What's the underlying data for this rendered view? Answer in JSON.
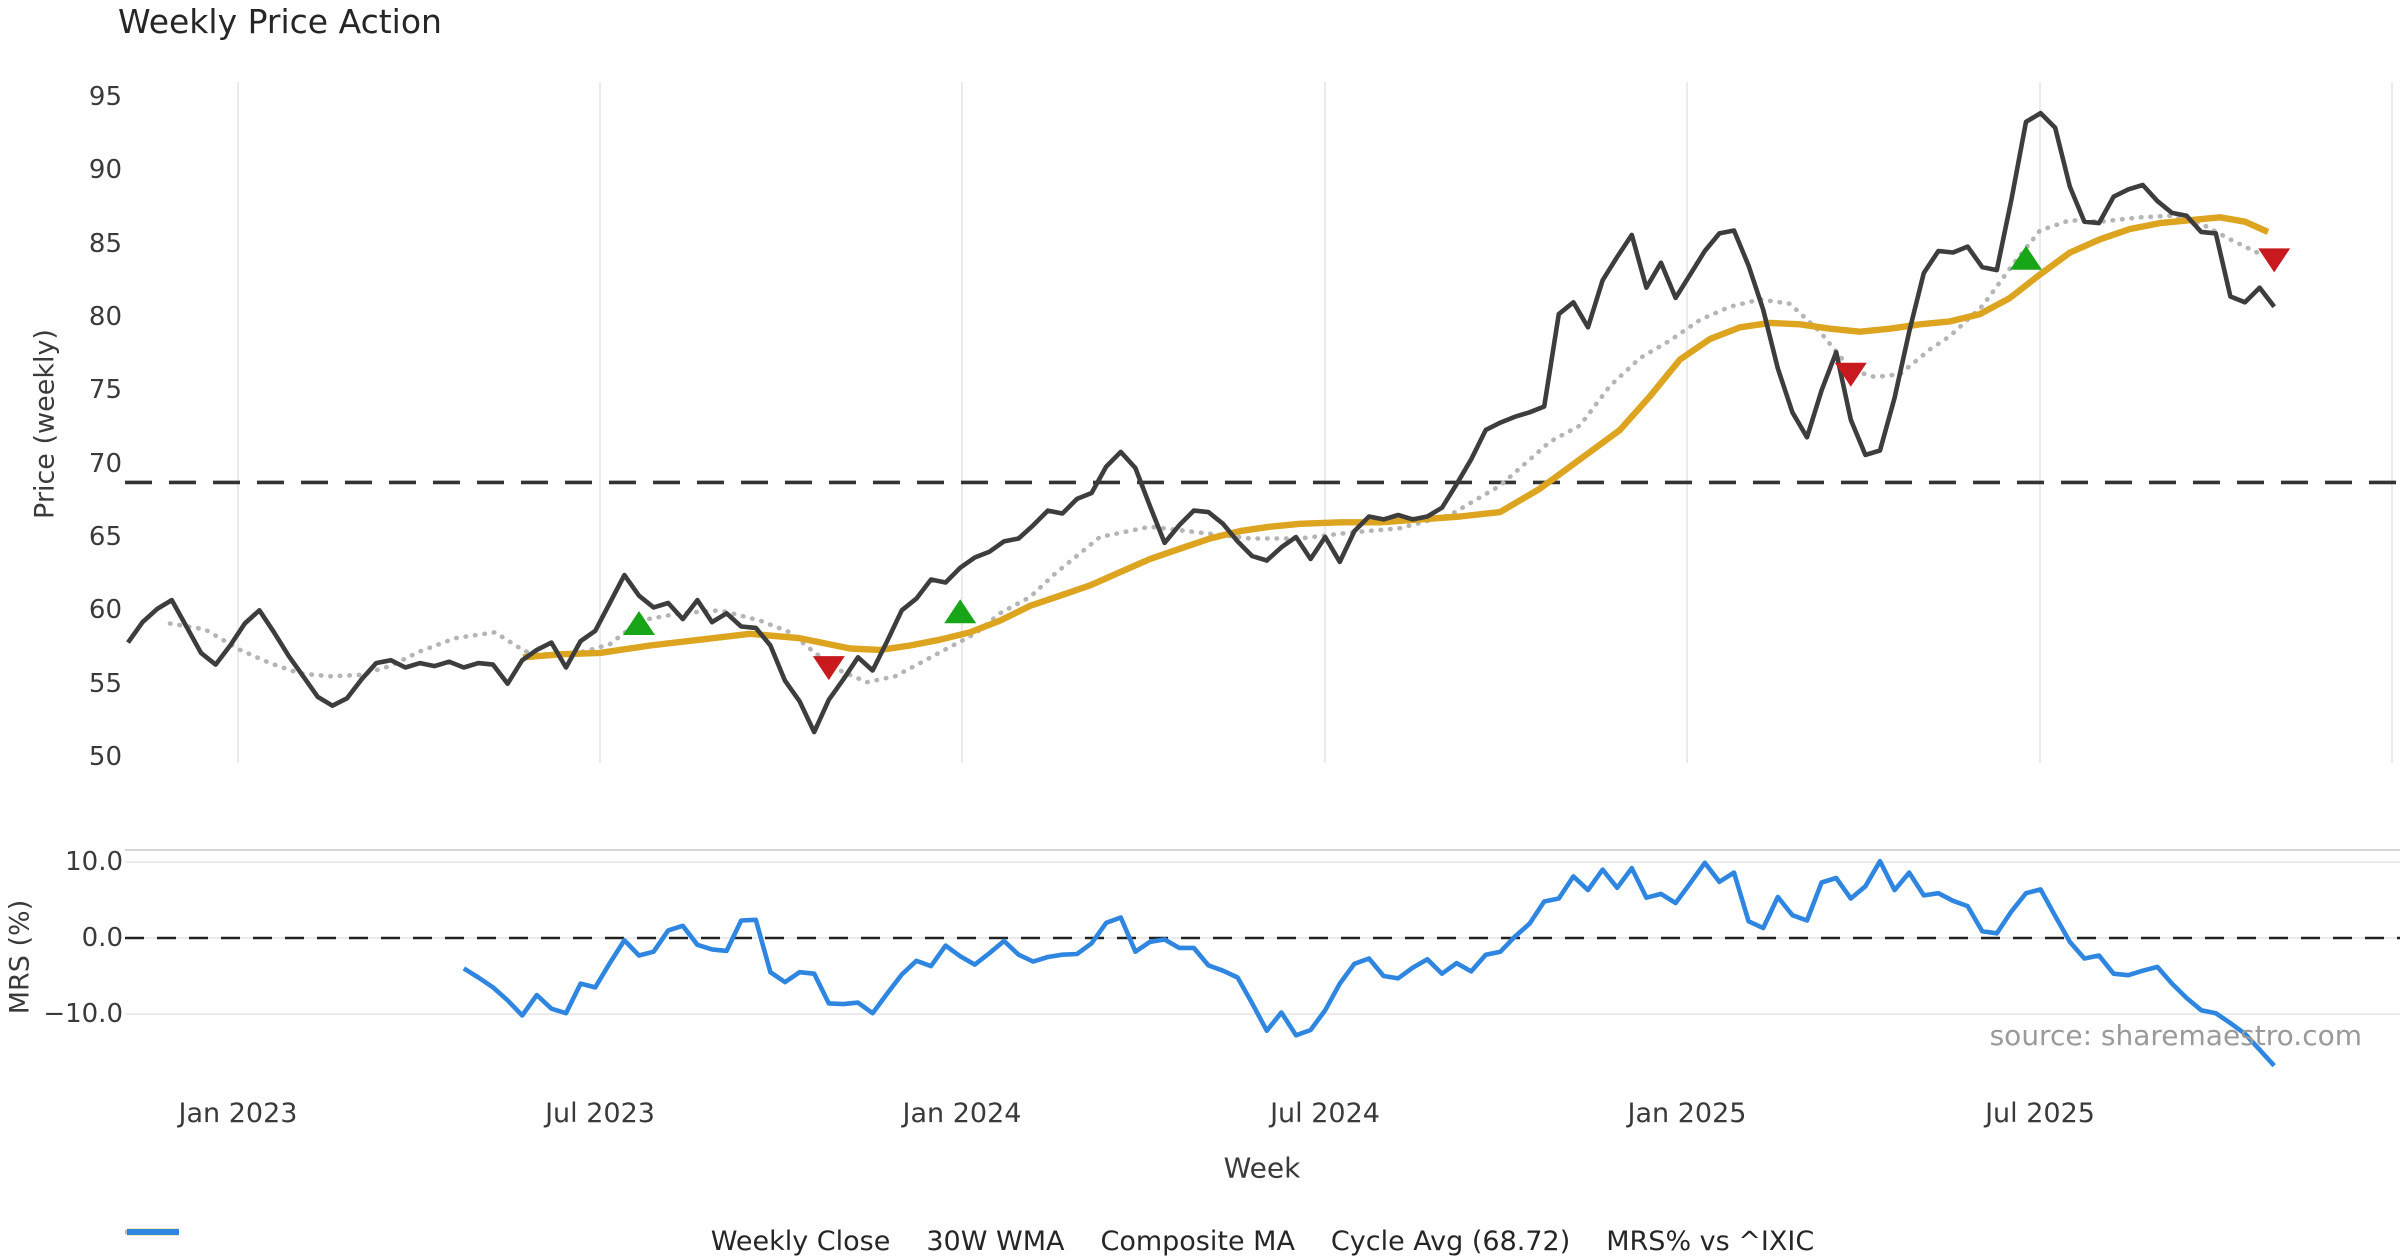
{
  "title": "Weekly Price Action",
  "source_note": "source: sharemaestro.com",
  "axes": {
    "xlabel": "Week",
    "price_ylabel": "Price (weekly)",
    "mrs_ylabel": "MRS (%)",
    "price_yticks": [
      95,
      90,
      85,
      80,
      75,
      70,
      65,
      60,
      55,
      50
    ],
    "mrs_yticks": [
      {
        "label": "10.0",
        "value": 10
      },
      {
        "label": "0.0",
        "value": 0
      },
      {
        "label": "−10.0",
        "value": -10
      }
    ],
    "xticks": [
      "Jan 2023",
      "Jul 2023",
      "Jan 2024",
      "Jul 2024",
      "Jan 2025",
      "Jul 2025"
    ]
  },
  "colors": {
    "close": "#3d3d3d",
    "wma": "#dca41f",
    "composite": "#b5b5b5",
    "cycle": "#333333",
    "mrs": "#2e86e0",
    "marker_up": "#18a518",
    "marker_down": "#c8191e",
    "grid": "#ebebeb",
    "spine": "#d6d6d6"
  },
  "legend": {
    "items": [
      {
        "label": "Weekly Close",
        "style": "solid",
        "color": "#3d3d3d"
      },
      {
        "label": "30W WMA",
        "style": "thick",
        "color": "#dca41f"
      },
      {
        "label": "Composite MA",
        "style": "dotted",
        "color": "#b5b5b5"
      },
      {
        "label": "Cycle Avg (68.72)",
        "style": "dashed",
        "color": "#3d3d3d"
      },
      {
        "label": "MRS% vs ^IXIC",
        "style": "thick",
        "color": "#2e86e0"
      }
    ]
  },
  "chart_data": [
    {
      "type": "line",
      "panel": "price",
      "title": "Weekly Price Action",
      "ylabel": "Price (weekly)",
      "ylim": [
        49.6,
        96.0
      ],
      "grid": "vertical-only",
      "x_tick_labels": [
        "Jan 2023",
        "Jul 2023",
        "Jan 2024",
        "Jul 2024",
        "Jan 2025",
        "Jul 2025"
      ],
      "series": [
        {
          "name": "Weekly Close",
          "style": "solid",
          "color": "#3d3d3d",
          "start_week": 0,
          "values": [
            57.8,
            59.2,
            60.1,
            60.7,
            58.9,
            57.1,
            56.3,
            57.6,
            59.1,
            60.0,
            58.5,
            56.9,
            55.5,
            54.1,
            53.5,
            54.0,
            55.3,
            56.4,
            56.6,
            56.1,
            56.4,
            56.2,
            56.5,
            56.1,
            56.4,
            56.3,
            55.0,
            56.6,
            57.3,
            57.8,
            56.1,
            57.9,
            58.6,
            60.5,
            62.4,
            61.0,
            60.2,
            60.5,
            59.4,
            60.7,
            59.2,
            59.8,
            58.9,
            58.8,
            57.6,
            55.2,
            53.8,
            51.7,
            53.9,
            55.3,
            56.8,
            55.9,
            57.9,
            60.0,
            60.8,
            62.1,
            61.9,
            62.9,
            63.6,
            64.0,
            64.7,
            64.9,
            65.8,
            66.8,
            66.6,
            67.6,
            68.0,
            69.8,
            70.8,
            69.7,
            67.1,
            64.6,
            65.8,
            66.8,
            66.7,
            65.9,
            64.7,
            63.7,
            63.4,
            64.3,
            65.0,
            63.5,
            65.0,
            63.3,
            65.4,
            66.4,
            66.2,
            66.5,
            66.2,
            66.4,
            67.0,
            68.6,
            70.3,
            72.3,
            72.8,
            73.2,
            73.5,
            73.9,
            80.2,
            81.0,
            79.3,
            82.5,
            84.1,
            85.6,
            82.0,
            83.7,
            81.3,
            82.9,
            84.5,
            85.7,
            85.9,
            83.5,
            80.5,
            76.5,
            73.5,
            71.8,
            75.0,
            77.6,
            73.0,
            70.6,
            70.9,
            74.5,
            79.0,
            83.0,
            84.5,
            84.4,
            84.8,
            83.4,
            83.2,
            88.0,
            93.3,
            93.9,
            92.9,
            88.9,
            86.5,
            86.4,
            88.2,
            88.7,
            89.0,
            87.9,
            87.1,
            86.9,
            85.8,
            85.7,
            81.4,
            81.0,
            82.0,
            80.7
          ]
        },
        {
          "name": "30W WMA",
          "style": "thick",
          "color": "#dca41f",
          "points": [
            [
              523,
              56.8
            ],
            [
              560,
              57.0
            ],
            [
              600,
              57.1
            ],
            [
              650,
              57.6
            ],
            [
              700,
              58.0
            ],
            [
              750,
              58.4
            ],
            [
              800,
              58.1
            ],
            [
              850,
              57.4
            ],
            [
              880,
              57.3
            ],
            [
              910,
              57.6
            ],
            [
              940,
              58.0
            ],
            [
              970,
              58.5
            ],
            [
              1000,
              59.3
            ],
            [
              1030,
              60.3
            ],
            [
              1060,
              61.0
            ],
            [
              1090,
              61.7
            ],
            [
              1120,
              62.6
            ],
            [
              1150,
              63.5
            ],
            [
              1180,
              64.2
            ],
            [
              1210,
              64.9
            ],
            [
              1240,
              65.4
            ],
            [
              1270,
              65.7
            ],
            [
              1300,
              65.9
            ],
            [
              1340,
              66.0
            ],
            [
              1380,
              66.0
            ],
            [
              1420,
              66.2
            ],
            [
              1460,
              66.4
            ],
            [
              1500,
              66.7
            ],
            [
              1540,
              68.3
            ],
            [
              1580,
              70.3
            ],
            [
              1620,
              72.3
            ],
            [
              1650,
              74.6
            ],
            [
              1680,
              77.1
            ],
            [
              1710,
              78.5
            ],
            [
              1740,
              79.3
            ],
            [
              1770,
              79.6
            ],
            [
              1800,
              79.5
            ],
            [
              1830,
              79.2
            ],
            [
              1860,
              79.0
            ],
            [
              1890,
              79.2
            ],
            [
              1920,
              79.5
            ],
            [
              1950,
              79.7
            ],
            [
              1980,
              80.2
            ],
            [
              2010,
              81.3
            ],
            [
              2040,
              82.9
            ],
            [
              2070,
              84.4
            ],
            [
              2100,
              85.3
            ],
            [
              2130,
              86.0
            ],
            [
              2160,
              86.4
            ],
            [
              2190,
              86.6
            ],
            [
              2220,
              86.8
            ],
            [
              2245,
              86.5
            ],
            [
              2268,
              85.8
            ]
          ]
        },
        {
          "name": "Composite MA",
          "style": "dotted",
          "color": "#b5b5b5",
          "points": [
            [
              170,
              59.1
            ],
            [
              205,
              58.7
            ],
            [
              240,
              57.3
            ],
            [
              270,
              56.4
            ],
            [
              300,
              55.7
            ],
            [
              330,
              55.5
            ],
            [
              360,
              55.6
            ],
            [
              390,
              56.2
            ],
            [
              420,
              57.2
            ],
            [
              455,
              58.1
            ],
            [
              495,
              58.5
            ],
            [
              525,
              57.2
            ],
            [
              555,
              56.9
            ],
            [
              585,
              57.2
            ],
            [
              610,
              57.7
            ],
            [
              640,
              59.3
            ],
            [
              680,
              59.8
            ],
            [
              720,
              60.0
            ],
            [
              760,
              59.3
            ],
            [
              790,
              58.5
            ],
            [
              815,
              57.1
            ],
            [
              840,
              55.9
            ],
            [
              867,
              55.1
            ],
            [
              895,
              55.5
            ],
            [
              920,
              56.4
            ],
            [
              950,
              57.5
            ],
            [
              975,
              58.4
            ],
            [
              1000,
              59.8
            ],
            [
              1030,
              60.9
            ],
            [
              1055,
              62.5
            ],
            [
              1100,
              65.0
            ],
            [
              1150,
              65.7
            ],
            [
              1200,
              65.3
            ],
            [
              1250,
              64.9
            ],
            [
              1300,
              64.9
            ],
            [
              1350,
              65.3
            ],
            [
              1400,
              65.6
            ],
            [
              1450,
              66.5
            ],
            [
              1500,
              68.5
            ],
            [
              1550,
              71.5
            ],
            [
              1580,
              72.6
            ],
            [
              1610,
              75.3
            ],
            [
              1640,
              77.2
            ],
            [
              1670,
              78.4
            ],
            [
              1700,
              79.8
            ],
            [
              1730,
              80.7
            ],
            [
              1760,
              81.2
            ],
            [
              1790,
              80.9
            ],
            [
              1820,
              79.0
            ],
            [
              1851,
              76.4
            ],
            [
              1875,
              75.9
            ],
            [
              1900,
              76.1
            ],
            [
              1930,
              77.8
            ],
            [
              1950,
              78.7
            ],
            [
              1983,
              80.8
            ],
            [
              2012,
              83.5
            ],
            [
              2040,
              85.9
            ],
            [
              2070,
              86.6
            ],
            [
              2100,
              86.5
            ],
            [
              2140,
              86.8
            ],
            [
              2170,
              86.9
            ],
            [
              2200,
              86.4
            ],
            [
              2230,
              85.3
            ],
            [
              2257,
              84.4
            ]
          ]
        },
        {
          "name": "Cycle Avg",
          "style": "dashed",
          "color": "#333333",
          "type": "hline",
          "value": 68.72
        }
      ],
      "markers": {
        "up": [
          {
            "week": 35,
            "value": 59.0
          },
          {
            "week": 57,
            "value": 59.8
          },
          {
            "week": 130,
            "value": 83.9
          }
        ],
        "down": [
          {
            "week": 48,
            "value": 56.2
          },
          {
            "week": 118,
            "value": 76.2
          },
          {
            "week": 147,
            "value": 84.0
          }
        ]
      }
    },
    {
      "type": "line",
      "panel": "mrs",
      "ylabel": "MRS (%)",
      "ylim": [
        -18.1,
        11.5
      ],
      "series": [
        {
          "name": "MRS% vs ^IXIC",
          "style": "thick",
          "color": "#2e86e0",
          "start_week": 23,
          "values": [
            -4.0,
            -5.2,
            -6.5,
            -8.2,
            -10.2,
            -7.5,
            -9.3,
            -9.9,
            -6.0,
            -6.5,
            -3.3,
            -0.3,
            -2.3,
            -1.8,
            1.0,
            1.6,
            -0.9,
            -1.5,
            -1.7,
            2.3,
            2.4,
            -4.5,
            -5.8,
            -4.5,
            -4.7,
            -8.6,
            -8.7,
            -8.5,
            -9.9,
            -7.3,
            -4.8,
            -3.0,
            -3.7,
            -1.0,
            -2.4,
            -3.5,
            -2.0,
            -0.4,
            -2.2,
            -3.1,
            -2.5,
            -2.2,
            -2.1,
            -0.7,
            2.0,
            2.7,
            -1.8,
            -0.5,
            -0.2,
            -1.3,
            -1.3,
            -3.6,
            -4.3,
            -5.2,
            -8.6,
            -12.2,
            -9.8,
            -12.8,
            -12.1,
            -9.5,
            -6.0,
            -3.4,
            -2.7,
            -5.0,
            -5.3,
            -3.9,
            -2.8,
            -4.7,
            -3.3,
            -4.4,
            -2.2,
            -1.8,
            0.2,
            1.9,
            4.8,
            5.2,
            8.1,
            6.3,
            9.0,
            6.6,
            9.2,
            5.3,
            5.8,
            4.6,
            7.2,
            9.9,
            7.4,
            8.6,
            2.2,
            1.3,
            5.4,
            3.0,
            2.3,
            7.3,
            7.9,
            5.2,
            6.8,
            10.1,
            6.3,
            8.6,
            5.6,
            5.9,
            4.9,
            4.2,
            0.9,
            0.6,
            3.5,
            5.9,
            6.4,
            2.9,
            -0.5,
            -2.7,
            -2.3,
            -4.7,
            -4.9,
            -4.3,
            -3.8,
            -6.0,
            -7.9,
            -9.5,
            -9.9,
            -11.2,
            -12.6,
            -14.7,
            -16.8
          ]
        },
        {
          "name": "Zero line",
          "style": "dashed",
          "color": "#222222",
          "type": "hline",
          "value": 0
        }
      ]
    }
  ]
}
